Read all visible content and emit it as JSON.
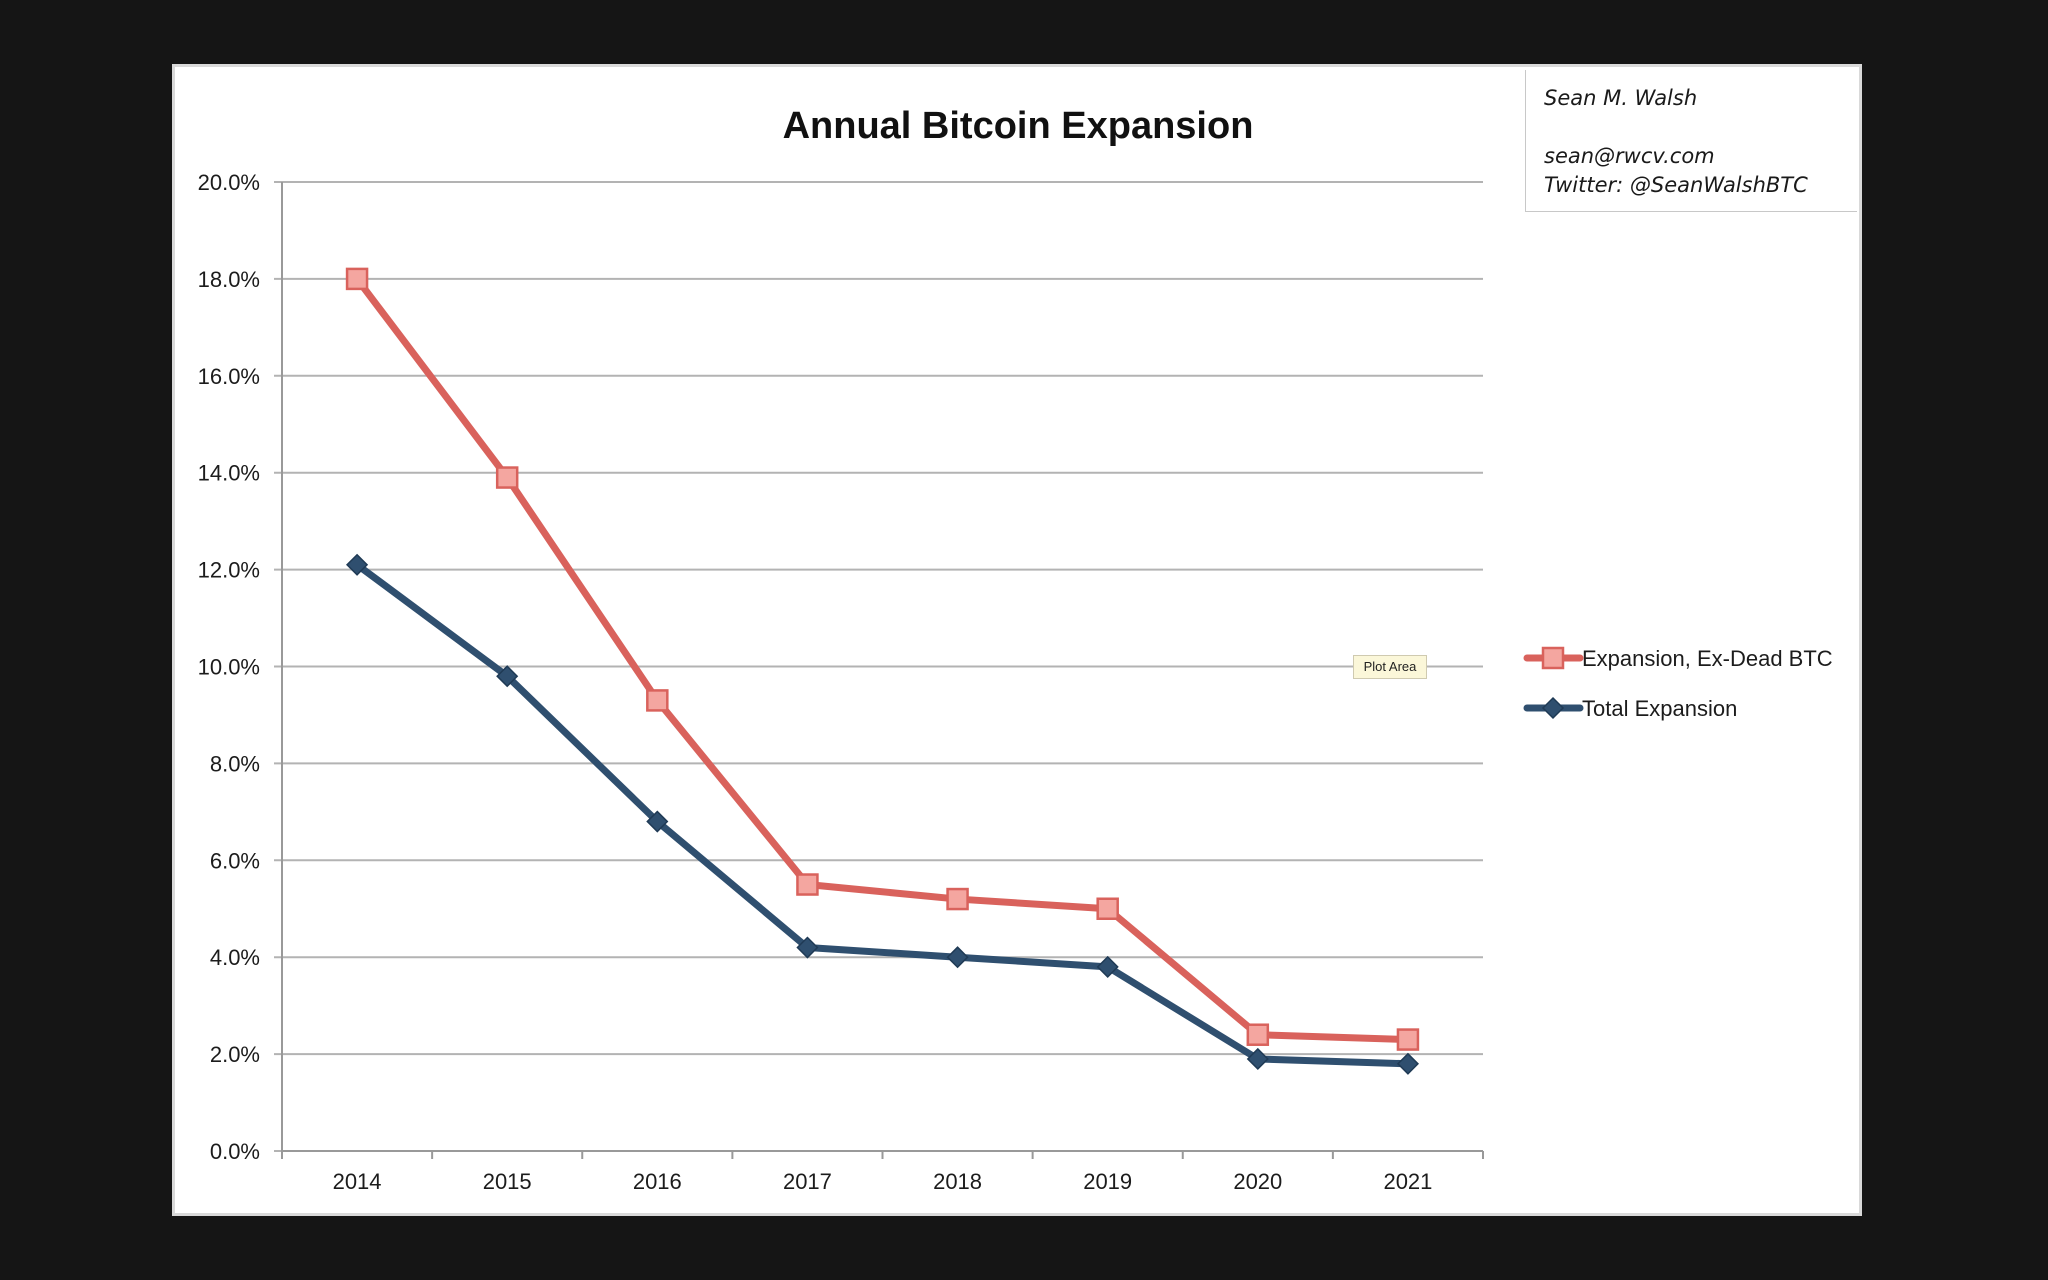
{
  "author": {
    "name": "Sean M. Walsh",
    "email": "sean@rwcv.com",
    "twitter": "Twitter: @SeanWalshBTC"
  },
  "tooltip": {
    "text": "Plot Area"
  },
  "colors": {
    "series_red": "#d9625c",
    "series_blue": "#2f4f6f",
    "grid": "#b3b3b3",
    "background": "#151515"
  },
  "chart_data": {
    "type": "line",
    "title": "Annual Bitcoin Expansion",
    "xlabel": "",
    "ylabel": "",
    "categories": [
      "2014",
      "2015",
      "2016",
      "2017",
      "2018",
      "2019",
      "2020",
      "2021"
    ],
    "ylim": [
      0,
      20
    ],
    "yticks": [
      "0.0%",
      "2.0%",
      "4.0%",
      "6.0%",
      "8.0%",
      "10.0%",
      "12.0%",
      "14.0%",
      "16.0%",
      "18.0%",
      "20.0%"
    ],
    "grid": true,
    "legend_position": "right",
    "series": [
      {
        "name": "Expansion, Ex-Dead BTC",
        "marker": "square",
        "color": "#d9625c",
        "values": [
          18.0,
          13.9,
          9.3,
          5.5,
          5.2,
          5.0,
          2.4,
          2.3
        ]
      },
      {
        "name": "Total Expansion",
        "marker": "diamond",
        "color": "#2f4f6f",
        "values": [
          12.1,
          9.8,
          6.8,
          4.2,
          4.0,
          3.8,
          1.9,
          1.8
        ]
      }
    ]
  }
}
